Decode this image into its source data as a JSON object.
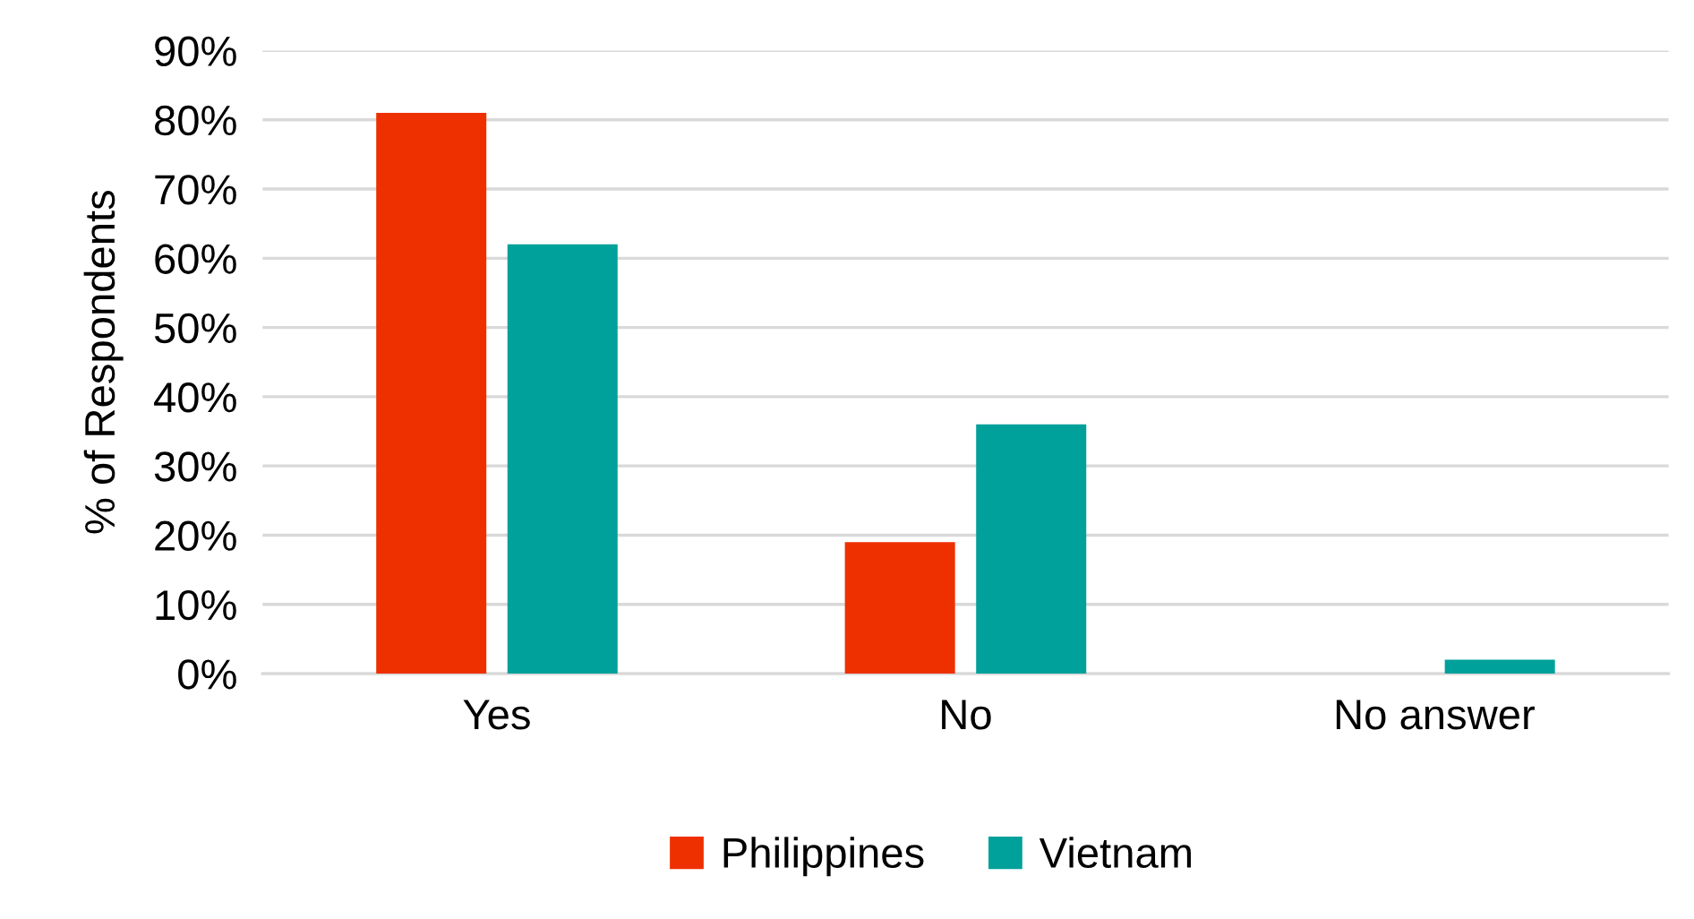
{
  "chart_data": {
    "type": "bar",
    "ylabel": "% of Respondents",
    "categories": [
      "Yes",
      "No",
      "No answer"
    ],
    "series": [
      {
        "name": "Philippines",
        "color": "#ee3000",
        "values": [
          81,
          19,
          0
        ]
      },
      {
        "name": "Vietnam",
        "color": "#00a19b",
        "values": [
          62,
          36,
          2
        ]
      }
    ],
    "ylim": [
      0,
      90
    ],
    "yticks": [
      {
        "value": 0,
        "label": "0%"
      },
      {
        "value": 10,
        "label": "10%"
      },
      {
        "value": 20,
        "label": "20%"
      },
      {
        "value": 30,
        "label": "30%"
      },
      {
        "value": 40,
        "label": "40%"
      },
      {
        "value": 50,
        "label": "50%"
      },
      {
        "value": 60,
        "label": "60%"
      },
      {
        "value": 70,
        "label": "70%"
      },
      {
        "value": 80,
        "label": "80%"
      },
      {
        "value": 90,
        "label": "90%"
      }
    ],
    "grid": "y",
    "legend": "bottom"
  }
}
